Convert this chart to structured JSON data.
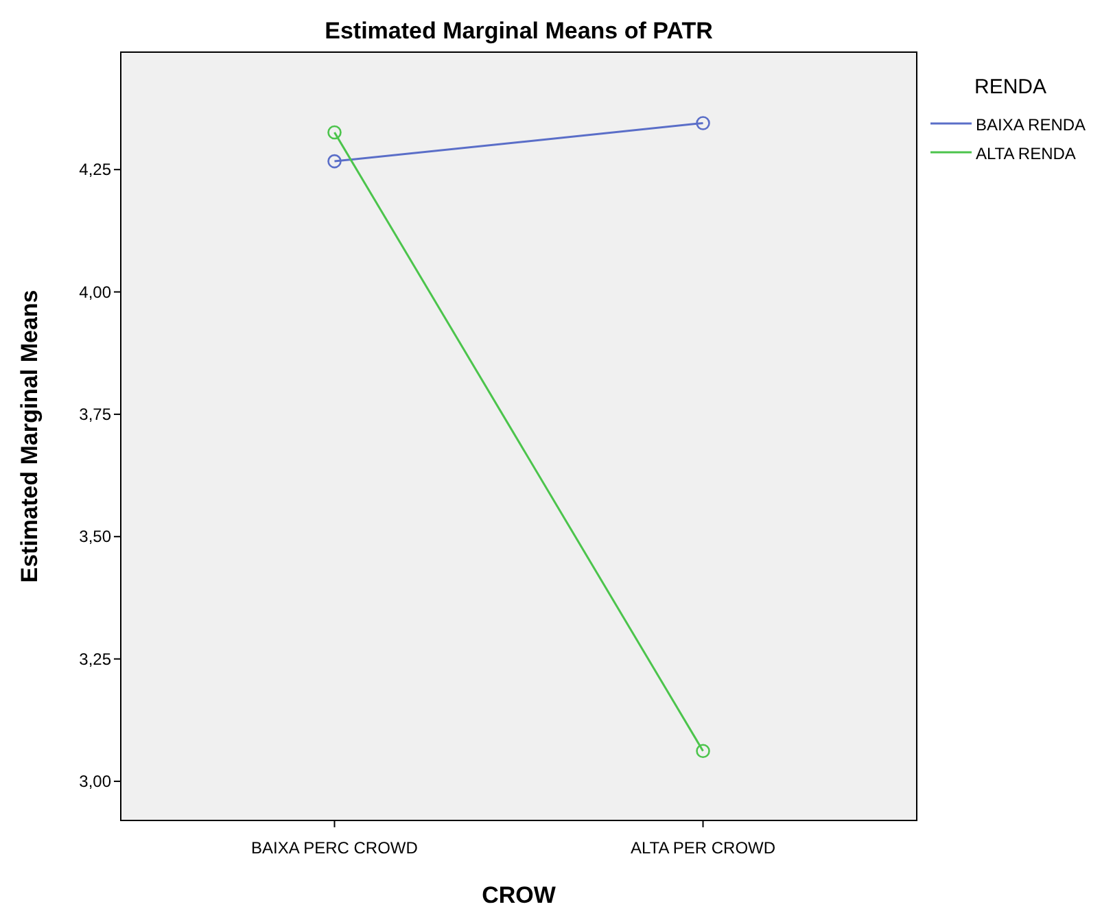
{
  "chart_data": {
    "type": "line",
    "title": "Estimated Marginal Means of PATR",
    "xlabel": "CROW",
    "ylabel": "Estimated Marginal Means",
    "legend_title": "RENDA",
    "categories": [
      "BAIXA PERC CROWD",
      "ALTA PER CROWD"
    ],
    "series": [
      {
        "name": "BAIXA RENDA",
        "color": "#5a6ec8",
        "values": [
          4.267,
          4.345
        ]
      },
      {
        "name": "ALTA RENDA",
        "color": "#4cc44c",
        "values": [
          4.326,
          3.062
        ]
      }
    ],
    "ylim": [
      2.92,
      4.49
    ],
    "yticks": [
      {
        "value": 3,
        "label": "3,00"
      },
      {
        "value": 3.25,
        "label": "3,25"
      },
      {
        "value": 3.5,
        "label": "3,50"
      },
      {
        "value": 3.75,
        "label": "3,75"
      },
      {
        "value": 4,
        "label": "4,00"
      },
      {
        "value": 4.25,
        "label": "4,25"
      }
    ],
    "grid": false,
    "legend": "top right",
    "marker": "circle",
    "line_style": "solid"
  }
}
